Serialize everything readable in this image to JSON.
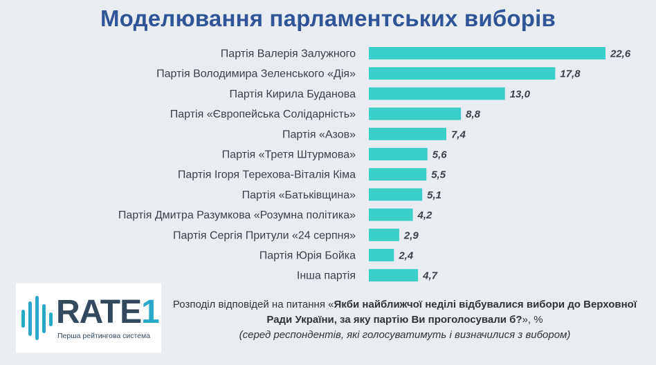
{
  "title": "Моделювання парламентських виборів",
  "chart_data": {
    "type": "bar",
    "orientation": "horizontal",
    "title": "Моделювання парламентських виборів",
    "categories": [
      "Партія Валерія Залужного",
      "Партія Володимира Зеленського «Дія»",
      "Партія Кирила Буданова",
      "Партія «Європейська Солідарність»",
      "Партія «Азов»",
      "Партія «Третя Штурмова»",
      "Партія Ігоря Терехова-Віталія Кіма",
      "Партія «Батьківщина»",
      "Партія Дмитра Разумкова «Розумна політика»",
      "Партія Сергія Притули «24 серпня»",
      "Партія Юрія Бойка",
      "Інша партія"
    ],
    "values": [
      22.6,
      17.8,
      13.0,
      8.8,
      7.4,
      5.6,
      5.5,
      5.1,
      4.2,
      2.9,
      2.4,
      4.7
    ],
    "value_labels": [
      "22,6",
      "17,8",
      "13,0",
      "8,8",
      "7,4",
      "5,6",
      "5,5",
      "5,1",
      "4,2",
      "2,9",
      "2,4",
      "4,7"
    ],
    "xlim": [
      0,
      22.6
    ],
    "grid": false,
    "bar_color": "#3ccfc9"
  },
  "logo": {
    "name_main": "RATE",
    "name_num": "1",
    "tagline": "Перша рейтингова система",
    "accent_color": "#2aa8c9"
  },
  "note": {
    "prefix": "Розподіл відповідей на питання «",
    "question": "Якби найближчої неділі відбувалися вибори до Верховної Ради України, за яку партію Ви проголосували б?",
    "suffix": "», %",
    "subnote": "(серед респондентів, які голосуватимуть і визначилися з вибором)"
  }
}
